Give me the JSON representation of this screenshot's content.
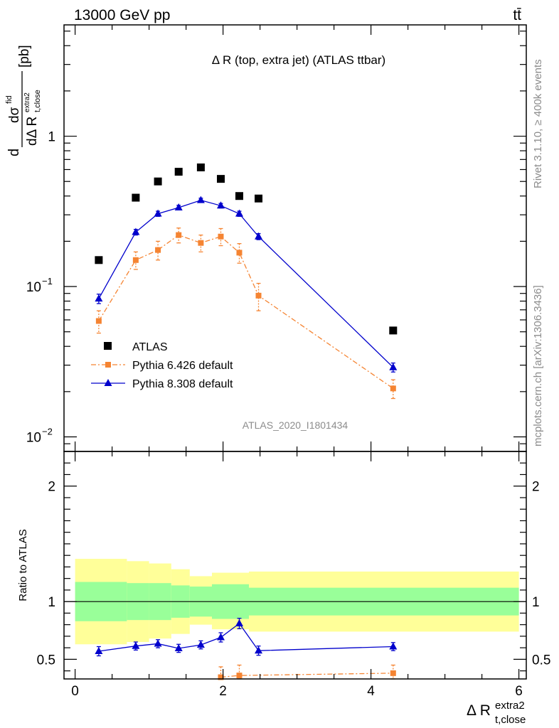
{
  "header": {
    "energy": "13000 GeV pp",
    "process": "tt̄"
  },
  "side_labels": {
    "rivet": "Rivet 3.1.10, ≥ 400k events",
    "source": "mcplots.cern.ch [arXiv:1306.3436]"
  },
  "chart_data": [
    {
      "type": "scatter",
      "panel": "main",
      "title": "Δ R (top, extra jet) (ATLAS ttbar)",
      "watermark": "ATLAS_2020_I1801434",
      "ylabel": "dσ^fid / dΔ R_t,close^extra2 [pb]",
      "ylabel_parts": {
        "num": "dσ",
        "num_sup": "fid",
        "den": "dΔ R",
        "den_sub": "t,close",
        "den_sup": "extra2",
        "unit": "[pb]",
        "d": "d"
      },
      "yscale": "log",
      "ylim": [
        0.008,
        5.5
      ],
      "xlim": [
        -0.15,
        6.1
      ],
      "y_ticks": [
        {
          "v": 0.01,
          "label": "10",
          "exp": "−2"
        },
        {
          "v": 0.1,
          "label": "10",
          "exp": "−1"
        },
        {
          "v": 1,
          "label": "1",
          "exp": ""
        }
      ],
      "legend_position": "bottom-left",
      "series": [
        {
          "name": "ATLAS",
          "color": "#000000",
          "marker": "square",
          "x": [
            0.32,
            0.82,
            1.12,
            1.4,
            1.7,
            1.97,
            2.22,
            2.48,
            4.3
          ],
          "y": [
            0.15,
            0.39,
            0.5,
            0.58,
            0.62,
            0.52,
            0.4,
            0.385,
            0.051
          ]
        },
        {
          "name": "Pythia 6.426 default",
          "color": "#f58432",
          "marker": "square-small",
          "line": "dashdot",
          "x": [
            0.32,
            0.82,
            1.12,
            1.4,
            1.7,
            1.97,
            2.22,
            2.48,
            4.3
          ],
          "y": [
            0.059,
            0.15,
            0.175,
            0.22,
            0.195,
            0.215,
            0.168,
            0.087,
            0.021
          ],
          "err_lo": [
            0.01,
            0.02,
            0.025,
            0.025,
            0.025,
            0.028,
            0.025,
            0.018,
            0.003
          ],
          "err_hi": [
            0.01,
            0.02,
            0.025,
            0.025,
            0.025,
            0.028,
            0.025,
            0.018,
            0.003
          ]
        },
        {
          "name": "Pythia 8.308 default",
          "color": "#0000cc",
          "marker": "triangle",
          "line": "solid",
          "x": [
            0.32,
            0.82,
            1.12,
            1.4,
            1.7,
            1.97,
            2.22,
            2.48,
            4.3
          ],
          "y": [
            0.083,
            0.23,
            0.305,
            0.335,
            0.375,
            0.345,
            0.305,
            0.215,
            0.029
          ],
          "err_lo": [
            0.006,
            0.01,
            0.012,
            0.012,
            0.012,
            0.012,
            0.012,
            0.01,
            0.002
          ],
          "err_hi": [
            0.006,
            0.01,
            0.012,
            0.012,
            0.012,
            0.012,
            0.012,
            0.01,
            0.002
          ]
        }
      ]
    },
    {
      "type": "scatter",
      "panel": "ratio",
      "ylabel": "Ratio to ATLAS",
      "xlabel": "Δ R_t,close^extra2",
      "xlabel_parts": {
        "main": "Δ R",
        "sub": "t,close",
        "sup": "extra2"
      },
      "ylim": [
        0.33,
        2.3
      ],
      "xlim": [
        -0.15,
        6.1
      ],
      "x_ticks": [
        0,
        2,
        4,
        6
      ],
      "y_ticks": [
        0.5,
        1,
        2
      ],
      "reference_line": 1,
      "bands": {
        "bin_edges": [
          0.0,
          0.7,
          1.0,
          1.3,
          1.55,
          1.85,
          2.1,
          2.35,
          2.6,
          6.0
        ],
        "inner_lo": [
          0.83,
          0.84,
          0.84,
          0.86,
          0.87,
          0.85,
          0.85,
          0.88,
          0.88
        ],
        "inner_hi": [
          1.17,
          1.16,
          1.16,
          1.14,
          1.13,
          1.15,
          1.15,
          1.12,
          1.12
        ],
        "outer_lo": [
          0.63,
          0.65,
          0.68,
          0.72,
          0.8,
          0.76,
          0.76,
          0.74,
          0.74
        ],
        "outer_hi": [
          1.37,
          1.35,
          1.33,
          1.28,
          1.22,
          1.25,
          1.25,
          1.26,
          1.26
        ],
        "inner_color": "#99ff99",
        "outer_color": "#ffff99"
      },
      "series": [
        {
          "name": "Pythia 6.426 default",
          "color": "#f58432",
          "marker": "square-small",
          "line": "dashdot",
          "x": [
            1.97,
            2.22,
            4.3
          ],
          "y": [
            0.345,
            0.36,
            0.38
          ],
          "err_lo": [
            0.07,
            0.07,
            0.05
          ],
          "err_hi": [
            0.09,
            0.09,
            0.07
          ]
        },
        {
          "name": "Pythia 8.308 default",
          "color": "#0000cc",
          "marker": "triangle",
          "line": "solid",
          "x": [
            0.32,
            0.82,
            1.12,
            1.4,
            1.7,
            1.97,
            2.22,
            2.48,
            4.3
          ],
          "y": [
            0.57,
            0.615,
            0.635,
            0.595,
            0.625,
            0.69,
            0.81,
            0.575,
            0.61
          ],
          "err_lo": [
            0.04,
            0.035,
            0.035,
            0.035,
            0.035,
            0.04,
            0.045,
            0.04,
            0.035
          ],
          "err_hi": [
            0.04,
            0.035,
            0.035,
            0.035,
            0.035,
            0.04,
            0.045,
            0.04,
            0.035
          ]
        }
      ]
    }
  ]
}
